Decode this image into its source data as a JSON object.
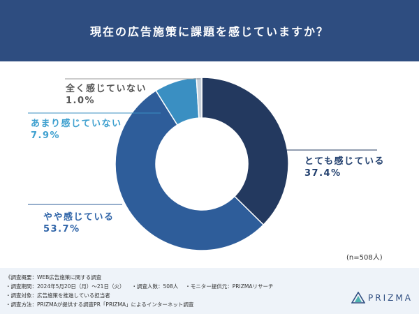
{
  "header": {
    "title": "現在の広告施策に課題を感じていますか？"
  },
  "chart_data": {
    "type": "pie",
    "title": "現在の広告施策に課題を感じていますか？",
    "categories": [
      "とても感じている",
      "やや感じている",
      "あまり感じていない",
      "全く感じていない"
    ],
    "values": [
      37.4,
      53.7,
      7.9,
      1.0
    ],
    "value_labels": [
      "37.4%",
      "53.7%",
      "7.9%",
      "1.0%"
    ],
    "colors": [
      "#23395f",
      "#2e5d9a",
      "#3a8fc2",
      "#c7d0da"
    ],
    "donut": true
  },
  "sample_note": "(n=508人)",
  "footer": {
    "overview": "《調査概要：WEB広告施策に関する調査",
    "period": "・調査期間：2024年5月20日（月）〜21日（火）",
    "respondents": "・調査人数：508人",
    "provider": "・モニター提供元：PRIZMAリサーチ",
    "target": "・調査対象：広告施策を推進している担当者",
    "method": "・調査方法：PRIZMAが提供する調査PR「PRIZMA」によるインターネット調査"
  },
  "logo": {
    "text": "PRIZMA",
    "colors": [
      "#2e4d80",
      "#4db3b0"
    ]
  }
}
